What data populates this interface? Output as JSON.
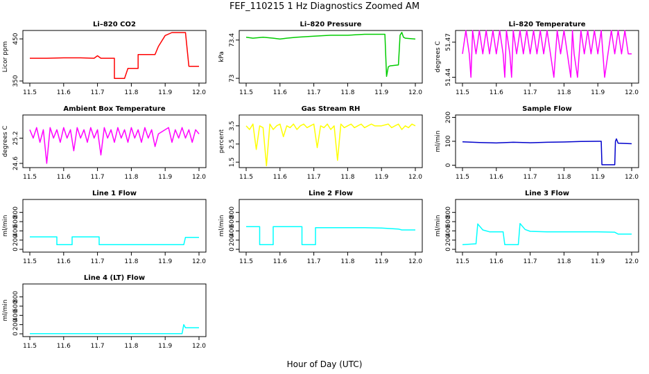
{
  "figure": {
    "title": "FEF_110215  1 Hz Diagnostics Zoomed AM",
    "xlabel": "Hour of Day (UTC)"
  },
  "chart_data": [
    {
      "type": "line",
      "title": "Li–820 CO2",
      "ylabel": "Licor ppm",
      "color": "#ff0000",
      "xlim": [
        11.5,
        12.0
      ],
      "ylim": [
        345,
        470
      ],
      "xticks": [
        "11.5",
        "11.6",
        "11.7",
        "11.8",
        "11.9",
        "12.0"
      ],
      "yticks": [
        350,
        450
      ],
      "x": [
        11.5,
        11.55,
        11.6,
        11.65,
        11.69,
        11.7,
        11.71,
        11.75,
        11.75,
        11.76,
        11.77,
        11.78,
        11.79,
        11.8,
        11.81,
        11.82,
        11.82,
        11.83,
        11.84,
        11.85,
        11.86,
        11.87,
        11.88,
        11.9,
        11.92,
        11.93,
        11.95,
        11.96,
        11.97,
        11.98,
        12.0
      ],
      "y": [
        404,
        404,
        405,
        405,
        404,
        410,
        404,
        404,
        356,
        356,
        356,
        356,
        380,
        380,
        380,
        380,
        413,
        413,
        413,
        413,
        413,
        413,
        432,
        458,
        465,
        465,
        465,
        465,
        385,
        385,
        385
      ]
    },
    {
      "type": "line",
      "title": "Li–820 Pressure",
      "ylabel": "kPa",
      "color": "#00cc00",
      "xlim": [
        11.5,
        12.0
      ],
      "ylim": [
        72.95,
        73.5
      ],
      "xticks": [
        "11.5",
        "11.6",
        "11.7",
        "11.8",
        "11.9",
        "12.0"
      ],
      "yticks": [
        73.0,
        73.4
      ],
      "x": [
        11.5,
        11.52,
        11.55,
        11.58,
        11.6,
        11.62,
        11.65,
        11.7,
        11.75,
        11.8,
        11.85,
        11.9,
        11.91,
        11.915,
        11.92,
        11.925,
        11.95,
        11.955,
        11.96,
        11.965,
        11.97,
        12.0
      ],
      "y": [
        73.43,
        73.42,
        73.43,
        73.42,
        73.41,
        73.42,
        73.43,
        73.44,
        73.45,
        73.45,
        73.46,
        73.46,
        73.46,
        73.02,
        73.12,
        73.13,
        73.14,
        73.45,
        73.48,
        73.43,
        73.42,
        73.41
      ]
    },
    {
      "type": "line",
      "title": "Li–820 Temperature",
      "ylabel": "degrees C",
      "color": "#ff00ff",
      "xlim": [
        11.5,
        12.0
      ],
      "ylim": [
        51.435,
        51.48
      ],
      "xticks": [
        "11.5",
        "11.6",
        "11.7",
        "11.8",
        "11.9",
        "12.0"
      ],
      "yticks": [
        51.44,
        51.47
      ],
      "x": [
        11.5,
        11.51,
        11.52,
        11.525,
        11.53,
        11.54,
        11.55,
        11.56,
        11.57,
        11.58,
        11.59,
        11.6,
        11.61,
        11.62,
        11.625,
        11.63,
        11.64,
        11.645,
        11.65,
        11.66,
        11.67,
        11.68,
        11.69,
        11.7,
        11.71,
        11.72,
        11.73,
        11.74,
        11.75,
        11.76,
        11.77,
        11.78,
        11.79,
        11.8,
        11.81,
        11.82,
        11.825,
        11.83,
        11.84,
        11.85,
        11.86,
        11.87,
        11.88,
        11.89,
        11.9,
        11.91,
        11.92,
        11.93,
        11.94,
        11.95,
        11.96,
        11.97,
        11.98,
        11.99,
        12.0
      ],
      "y": [
        51.46,
        51.48,
        51.46,
        51.44,
        51.48,
        51.46,
        51.48,
        51.46,
        51.48,
        51.46,
        51.48,
        51.46,
        51.48,
        51.46,
        51.44,
        51.48,
        51.46,
        51.44,
        51.48,
        51.46,
        51.48,
        51.46,
        51.48,
        51.46,
        51.48,
        51.46,
        51.48,
        51.46,
        51.48,
        51.46,
        51.44,
        51.48,
        51.46,
        51.48,
        51.46,
        51.44,
        51.48,
        51.46,
        51.44,
        51.48,
        51.46,
        51.48,
        51.46,
        51.48,
        51.46,
        51.48,
        51.44,
        51.46,
        51.48,
        51.46,
        51.48,
        51.46,
        51.48,
        51.46,
        51.46
      ]
    },
    {
      "type": "line",
      "title": "Ambient Box Temperature",
      "ylabel": "degrees C",
      "color": "#ff00ff",
      "xlim": [
        11.5,
        12.0
      ],
      "ylim": [
        24.5,
        25.75
      ],
      "xticks": [
        "11.5",
        "11.6",
        "11.7",
        "11.8",
        "11.9",
        "12.0"
      ],
      "yticks": [
        24.6,
        25.2
      ],
      "x": [
        11.5,
        11.51,
        11.52,
        11.53,
        11.54,
        11.55,
        11.56,
        11.57,
        11.58,
        11.59,
        11.6,
        11.61,
        11.62,
        11.63,
        11.64,
        11.65,
        11.66,
        11.67,
        11.68,
        11.69,
        11.7,
        11.71,
        11.72,
        11.73,
        11.74,
        11.75,
        11.76,
        11.77,
        11.78,
        11.79,
        11.8,
        11.81,
        11.82,
        11.83,
        11.84,
        11.85,
        11.86,
        11.87,
        11.88,
        11.9,
        11.91,
        11.92,
        11.93,
        11.94,
        11.95,
        11.96,
        11.97,
        11.98,
        11.99,
        12.0
      ],
      "y": [
        25.4,
        25.2,
        25.45,
        25.1,
        25.4,
        24.6,
        25.45,
        25.2,
        25.4,
        25.1,
        25.45,
        25.2,
        25.4,
        24.9,
        25.45,
        25.2,
        25.4,
        25.1,
        25.45,
        25.2,
        25.4,
        24.8,
        25.45,
        25.2,
        25.4,
        25.1,
        25.45,
        25.2,
        25.4,
        25.1,
        25.45,
        25.2,
        25.4,
        25.1,
        25.45,
        25.2,
        25.4,
        25.0,
        25.3,
        25.4,
        25.45,
        25.1,
        25.4,
        25.2,
        25.45,
        25.2,
        25.4,
        25.1,
        25.4,
        25.3
      ]
    },
    {
      "type": "line",
      "title": "Gas Stream RH",
      "ylabel": "percent",
      "color": "#ffff00",
      "xlim": [
        11.5,
        12.0
      ],
      "ylim": [
        1.2,
        4.1
      ],
      "xticks": [
        "11.5",
        "11.6",
        "11.7",
        "11.8",
        "11.9",
        "12.0"
      ],
      "yticks": [
        1.5,
        2.5,
        3.5
      ],
      "x": [
        11.5,
        11.51,
        11.52,
        11.53,
        11.54,
        11.55,
        11.56,
        11.57,
        11.58,
        11.59,
        11.6,
        11.61,
        11.62,
        11.63,
        11.64,
        11.65,
        11.66,
        11.67,
        11.68,
        11.69,
        11.7,
        11.71,
        11.72,
        11.73,
        11.74,
        11.75,
        11.76,
        11.77,
        11.78,
        11.79,
        11.8,
        11.81,
        11.82,
        11.83,
        11.84,
        11.85,
        11.86,
        11.87,
        11.88,
        11.9,
        11.92,
        11.93,
        11.94,
        11.95,
        11.96,
        11.97,
        11.98,
        11.99,
        12.0
      ],
      "y": [
        3.5,
        3.3,
        3.6,
        2.2,
        3.5,
        3.4,
        1.3,
        3.6,
        3.3,
        3.5,
        3.6,
        2.9,
        3.5,
        3.4,
        3.6,
        3.3,
        3.5,
        3.6,
        3.4,
        3.5,
        3.6,
        2.3,
        3.5,
        3.4,
        3.6,
        3.3,
        3.5,
        1.6,
        3.6,
        3.4,
        3.5,
        3.6,
        3.4,
        3.5,
        3.6,
        3.4,
        3.5,
        3.6,
        3.5,
        3.5,
        3.6,
        3.4,
        3.5,
        3.6,
        3.3,
        3.5,
        3.4,
        3.6,
        3.5
      ]
    },
    {
      "type": "line",
      "title": "Sample Flow",
      "ylabel": "ml/min",
      "color": "#0000cc",
      "xlim": [
        11.5,
        12.0
      ],
      "ylim": [
        -10,
        210
      ],
      "xticks": [
        "11.5",
        "11.6",
        "11.7",
        "11.8",
        "11.9",
        "12.0"
      ],
      "yticks": [
        0,
        100,
        200
      ],
      "x": [
        11.5,
        11.55,
        11.6,
        11.65,
        11.7,
        11.75,
        11.8,
        11.85,
        11.9,
        11.91,
        11.912,
        11.95,
        11.952,
        11.955,
        11.96,
        12.0
      ],
      "y": [
        98,
        95,
        93,
        96,
        94,
        96,
        97,
        99,
        100,
        100,
        2,
        2,
        100,
        110,
        92,
        90
      ]
    },
    {
      "type": "line",
      "title": "Line 1 Flow",
      "ylabel": "ml/min",
      "color": "#00ffff",
      "xlim": [
        11.5,
        12.0
      ],
      "ylim": [
        -60,
        1080
      ],
      "xticks": [
        "11.5",
        "11.6",
        "11.7",
        "11.8",
        "11.9",
        "12.0"
      ],
      "yticks": [
        0,
        200,
        400,
        600,
        800
      ],
      "x": [
        11.5,
        11.58,
        11.58,
        11.625,
        11.625,
        11.705,
        11.705,
        11.955,
        11.96,
        12.0
      ],
      "y": [
        270,
        270,
        100,
        100,
        270,
        270,
        100,
        100,
        260,
        260
      ]
    },
    {
      "type": "line",
      "title": "Line 2 Flow",
      "ylabel": "ml/min",
      "color": "#00ffff",
      "xlim": [
        11.5,
        12.0
      ],
      "ylim": [
        -60,
        1080
      ],
      "xticks": [
        "11.5",
        "11.6",
        "11.7",
        "11.8",
        "11.9",
        "12.0"
      ],
      "yticks": [
        0,
        200,
        400,
        600,
        800
      ],
      "x": [
        11.5,
        11.54,
        11.54,
        11.58,
        11.58,
        11.665,
        11.665,
        11.705,
        11.705,
        11.75,
        11.8,
        11.85,
        11.9,
        11.95,
        11.96,
        12.0
      ],
      "y": [
        490,
        490,
        100,
        100,
        490,
        490,
        100,
        100,
        470,
        470,
        470,
        470,
        460,
        440,
        420,
        420
      ]
    },
    {
      "type": "line",
      "title": "Line 3 Flow",
      "ylabel": "ml/min",
      "color": "#00ffff",
      "xlim": [
        11.5,
        12.0
      ],
      "ylim": [
        -60,
        1080
      ],
      "xticks": [
        "11.5",
        "11.6",
        "11.7",
        "11.8",
        "11.9",
        "12.0"
      ],
      "yticks": [
        0,
        200,
        400,
        600,
        800
      ],
      "x": [
        11.5,
        11.54,
        11.545,
        11.56,
        11.58,
        11.62,
        11.625,
        11.665,
        11.67,
        11.685,
        11.7,
        11.75,
        11.8,
        11.85,
        11.9,
        11.95,
        11.96,
        12.0
      ],
      "y": [
        100,
        120,
        550,
        420,
        380,
        380,
        100,
        100,
        560,
        430,
        390,
        380,
        380,
        380,
        380,
        370,
        330,
        330
      ]
    },
    {
      "type": "line",
      "title": "Line 4 (LT) Flow",
      "ylabel": "ml/min",
      "color": "#00ffff",
      "xlim": [
        11.5,
        12.0
      ],
      "ylim": [
        -60,
        1080
      ],
      "xticks": [
        "11.5",
        "11.6",
        "11.7",
        "11.8",
        "11.9",
        "12.0"
      ],
      "yticks": [
        0,
        200,
        400,
        600,
        800
      ],
      "x": [
        11.5,
        11.6,
        11.7,
        11.8,
        11.9,
        11.95,
        11.955,
        11.96,
        11.97,
        12.0
      ],
      "y": [
        5,
        5,
        5,
        5,
        5,
        5,
        200,
        130,
        130,
        130
      ]
    }
  ]
}
